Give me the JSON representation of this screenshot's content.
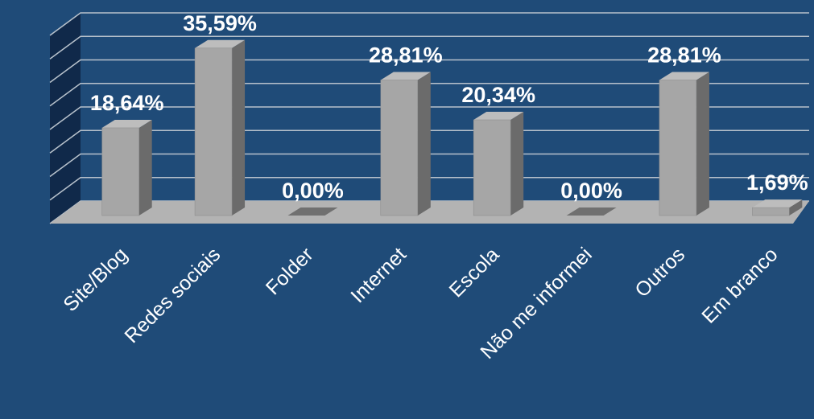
{
  "chart_data": {
    "type": "bar3d",
    "categories": [
      "Site/Blog",
      "Redes sociais",
      "Folder",
      "Internet",
      "Escola",
      "Não me informei",
      "Outros",
      "Em branco"
    ],
    "values": [
      18.64,
      35.59,
      0,
      28.81,
      20.34,
      0,
      28.81,
      1.69
    ],
    "value_labels": [
      "18,64%",
      "35,59%",
      "0,00%",
      "28,81%",
      "20,34%",
      "0,00%",
      "28,81%",
      "1,69%"
    ],
    "color": "#a6a6a6",
    "ylim": [
      0,
      40
    ],
    "yticks": [
      0,
      5,
      10,
      15,
      20,
      25,
      30,
      35,
      40
    ],
    "grid": true
  }
}
